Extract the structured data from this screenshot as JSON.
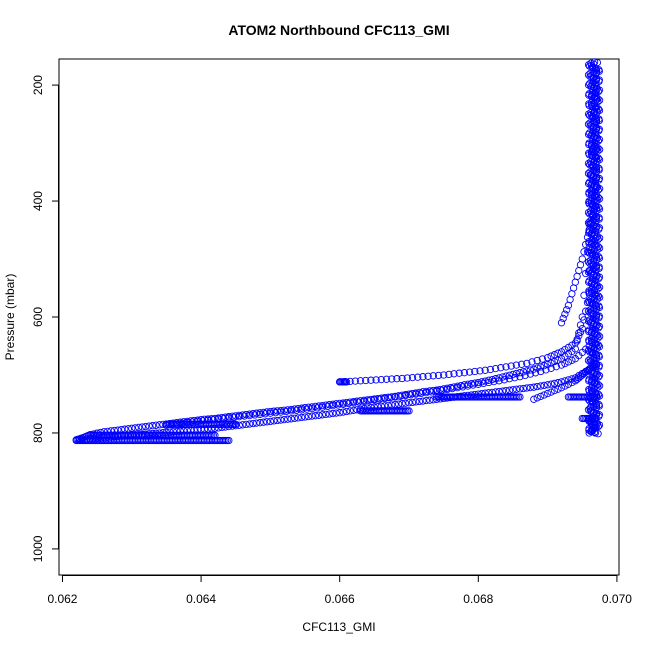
{
  "chart_data": {
    "type": "scatter",
    "title": "ATOM2 Northbound CFC113_GMI",
    "xlabel": "CFC113_GMI",
    "ylabel": "Pressure (mbar)",
    "xlim": [
      0.06195,
      0.07003
    ],
    "ylim": [
      1045,
      155
    ],
    "y_reversed": true,
    "grid": false,
    "legend": "none",
    "marker": "open-circle",
    "color": "#0000ff",
    "x_ticks": [
      0.062,
      0.064,
      0.066,
      0.068,
      0.07
    ],
    "x_tick_labels": [
      "0.062",
      "0.064",
      "0.066",
      "0.068",
      "0.070"
    ],
    "y_ticks": [
      200,
      400,
      600,
      800,
      1000
    ],
    "y_tick_labels": [
      "200",
      "400",
      "600",
      "800",
      "1000"
    ],
    "series": [
      {
        "x": [
          0.0622,
          0.0623,
          0.0624,
          0.0626,
          0.0628,
          0.063,
          0.0632,
          0.0634,
          0.0636,
          0.0638,
          0.064,
          0.0642,
          0.0644,
          0.0646,
          0.0648,
          0.065,
          0.0652,
          0.0654,
          0.0656,
          0.0658,
          0.066,
          0.0662,
          0.0664,
          0.0666,
          0.0668,
          0.067,
          0.0672,
          0.0674,
          0.0676,
          0.0678,
          0.068,
          0.0682,
          0.0684,
          0.0686,
          0.0688,
          0.069,
          0.0692,
          0.0694,
          0.0695,
          0.0696,
          0.0697
        ],
        "y": [
          812,
          808,
          803,
          798,
          795,
          792,
          789,
          786,
          783,
          780,
          777,
          775,
          772,
          769,
          766,
          763,
          761,
          758,
          755,
          752,
          749,
          746,
          743,
          740,
          737,
          733,
          729,
          726,
          722,
          717,
          713,
          708,
          702,
          696,
          690,
          682,
          672,
          655,
          600,
          450,
          180
        ]
      },
      {
        "x": [
          0.0622,
          0.0624,
          0.0626,
          0.0628,
          0.063,
          0.0632,
          0.0634,
          0.0636,
          0.0638,
          0.064,
          0.0642,
          0.0644,
          0.0646,
          0.0648,
          0.065,
          0.0652,
          0.0654,
          0.0656,
          0.0658,
          0.066,
          0.0662,
          0.0664,
          0.0666,
          0.0668,
          0.067,
          0.0672,
          0.0674,
          0.0676,
          0.0678,
          0.068,
          0.0682,
          0.0684,
          0.0686,
          0.0688,
          0.069,
          0.0692,
          0.0694,
          0.0696
        ],
        "y": [
          812,
          810,
          808,
          806,
          804,
          802,
          800,
          798,
          796,
          794,
          792,
          789,
          786,
          783,
          780,
          777,
          774,
          771,
          768,
          765,
          761,
          757,
          754,
          751,
          748,
          745,
          742,
          739,
          736,
          733,
          730,
          727,
          724,
          721,
          717,
          712,
          705,
          690
        ]
      },
      {
        "x": [
          0.0635,
          0.0638,
          0.0641,
          0.0644,
          0.0647,
          0.065,
          0.0653,
          0.0656,
          0.0659,
          0.0662,
          0.0665,
          0.0668,
          0.0671,
          0.0674,
          0.0677,
          0.068,
          0.0683,
          0.0686,
          0.0689,
          0.0692,
          0.0694,
          0.0696
        ],
        "y": [
          787,
          782,
          778,
          774,
          770,
          766,
          762,
          758,
          753,
          748,
          743,
          738,
          733,
          728,
          722,
          716,
          710,
          703,
          694,
          683,
          672,
          650
        ]
      },
      {
        "x": [
          0.066,
          0.0663,
          0.0666,
          0.0669,
          0.0672,
          0.0675,
          0.0678,
          0.0681,
          0.0684,
          0.0687,
          0.069,
          0.0692,
          0.0694,
          0.0695,
          0.0696,
          0.0696,
          0.0697
        ],
        "y": [
          712,
          710,
          708,
          706,
          703,
          700,
          696,
          692,
          686,
          680,
          670,
          660,
          645,
          620,
          560,
          400,
          220
        ]
      },
      {
        "x": [
          0.0688,
          0.069,
          0.0692,
          0.0694,
          0.0695,
          0.0696,
          0.0697,
          0.0696,
          0.0697,
          0.0696
        ],
        "y": [
          742,
          732,
          722,
          710,
          700,
          690,
          680,
          780,
          790,
          800
        ]
      },
      {
        "x": [
          0.0692,
          0.0693,
          0.0694,
          0.0695,
          0.0696,
          0.0697,
          0.0697,
          0.0697,
          0.0697,
          0.0697
        ],
        "y": [
          610,
          580,
          540,
          500,
          450,
          400,
          350,
          300,
          250,
          200
        ]
      }
    ],
    "flat_segments": [
      {
        "x": [
          0.0622,
          0.0644
        ],
        "y": 813
      },
      {
        "x": [
          0.0624,
          0.0642
        ],
        "y": 804
      },
      {
        "x": [
          0.0635,
          0.0645
        ],
        "y": 785
      },
      {
        "x": [
          0.066,
          0.0661
        ],
        "y": 712
      },
      {
        "x": [
          0.0663,
          0.067
        ],
        "y": 762
      },
      {
        "x": [
          0.0674,
          0.0686
        ],
        "y": 738
      },
      {
        "x": [
          0.0693,
          0.0697
        ],
        "y": 738
      },
      {
        "x": [
          0.0695,
          0.0697
        ],
        "y": 775
      }
    ]
  }
}
